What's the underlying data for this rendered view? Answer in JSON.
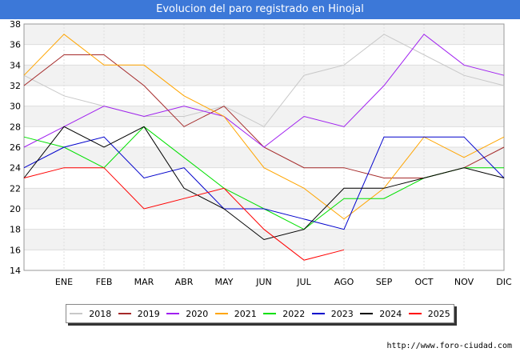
{
  "header": {
    "title": "Evolucion del paro registrado en Hinojal"
  },
  "source": "http://www.foro-ciudad.com",
  "chart_data": {
    "type": "line",
    "categories": [
      "",
      "ENE",
      "FEB",
      "MAR",
      "ABR",
      "MAY",
      "JUN",
      "JUL",
      "AGO",
      "SEP",
      "OCT",
      "NOV",
      "DIC"
    ],
    "ylim": [
      14,
      38
    ],
    "yticks": [
      14,
      16,
      18,
      20,
      22,
      24,
      26,
      28,
      30,
      32,
      34,
      36,
      38
    ],
    "grid": true,
    "legend_position": "bottom",
    "series": [
      {
        "name": "2018",
        "color": "#c8c8c8",
        "values": [
          33,
          31,
          30,
          29,
          29,
          30,
          28,
          33,
          34,
          37,
          35,
          33,
          32
        ]
      },
      {
        "name": "2019",
        "color": "#a52a2a",
        "values": [
          32,
          35,
          35,
          32,
          28,
          30,
          26,
          24,
          24,
          23,
          23,
          24,
          26
        ]
      },
      {
        "name": "2020",
        "color": "#a020f0",
        "values": [
          26,
          28,
          30,
          29,
          30,
          29,
          26,
          29,
          28,
          32,
          37,
          34,
          33
        ]
      },
      {
        "name": "2021",
        "color": "#ffa500",
        "values": [
          33,
          37,
          34,
          34,
          31,
          29,
          24,
          22,
          19,
          22,
          27,
          25,
          27
        ]
      },
      {
        "name": "2022",
        "color": "#00e000",
        "values": [
          27,
          26,
          24,
          28,
          25,
          22,
          20,
          18,
          21,
          21,
          23,
          24,
          24
        ]
      },
      {
        "name": "2023",
        "color": "#0000cc",
        "values": [
          24,
          26,
          27,
          23,
          24,
          20,
          20,
          19,
          18,
          27,
          27,
          27,
          23
        ]
      },
      {
        "name": "2024",
        "color": "#000000",
        "values": [
          23,
          28,
          26,
          28,
          22,
          20,
          17,
          18,
          22,
          22,
          23,
          24,
          23
        ]
      },
      {
        "name": "2025",
        "color": "#ff0000",
        "values": [
          23,
          24,
          24,
          20,
          21,
          22,
          18,
          15,
          16,
          null,
          null,
          null,
          null
        ]
      }
    ]
  }
}
